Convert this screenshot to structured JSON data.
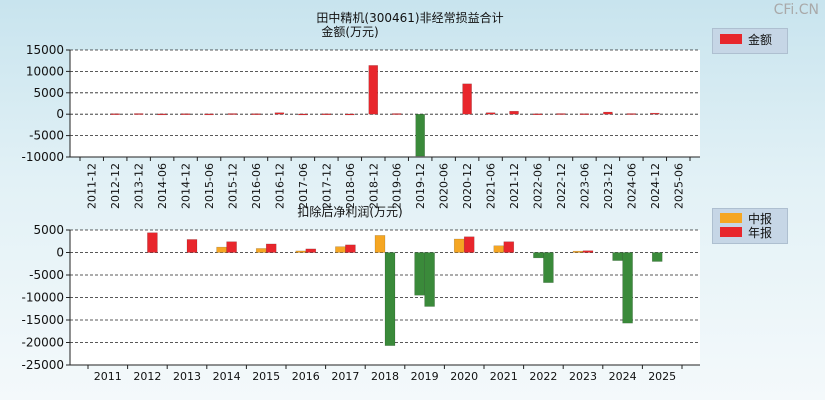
{
  "watermark": "CFi.CN",
  "colors": {
    "annual": "#e8262c",
    "interim": "#f5a623",
    "loss": "#3a8a3a"
  },
  "chart_data": [
    {
      "type": "bar",
      "title": "田中精机(300461)非经常损益合计",
      "subtitle": "金额(万元)",
      "categories": [
        "2011-12",
        "2012-12",
        "2013-12",
        "2014-06",
        "2014-12",
        "2015-06",
        "2015-12",
        "2016-06",
        "2016-12",
        "2017-06",
        "2017-12",
        "2018-06",
        "2018-12",
        "2019-06",
        "2019-12",
        "2020-06",
        "2020-12",
        "2021-06",
        "2021-12",
        "2022-06",
        "2022-12",
        "2023-06",
        "2023-12",
        "2024-06",
        "2024-12",
        "2025-06"
      ],
      "series": [
        {
          "name": "金额",
          "values": [
            0,
            120,
            150,
            80,
            120,
            80,
            150,
            120,
            350,
            60,
            100,
            60,
            11400,
            150,
            -9800,
            0,
            7100,
            350,
            700,
            100,
            150,
            120,
            500,
            150,
            250,
            0
          ]
        }
      ],
      "ylim": [
        -10000,
        15000
      ],
      "yticks": [
        15000,
        10000,
        5000,
        0,
        -5000,
        -10000
      ],
      "legend": [
        "金额"
      ]
    },
    {
      "type": "bar",
      "title": "扣除后净利润(万元)",
      "categories": [
        "2011",
        "2012",
        "2013",
        "2014",
        "2015",
        "2016",
        "2017",
        "2018",
        "2019",
        "2020",
        "2021",
        "2022",
        "2023",
        "2024",
        "2025"
      ],
      "series": [
        {
          "name": "中报",
          "values": [
            null,
            null,
            null,
            1200,
            900,
            350,
            1300,
            3800,
            -9500,
            3000,
            1500,
            -1200,
            300,
            -1800,
            -2000
          ]
        },
        {
          "name": "年报",
          "values": [
            null,
            4400,
            2900,
            2400,
            1900,
            800,
            1700,
            -20700,
            -12000,
            3500,
            2400,
            -6700,
            400,
            -15700,
            null
          ]
        }
      ],
      "ylim": [
        -25000,
        5000
      ],
      "yticks": [
        5000,
        0,
        -5000,
        -10000,
        -15000,
        -20000,
        -25000
      ],
      "legend": [
        "中报",
        "年报"
      ]
    }
  ]
}
